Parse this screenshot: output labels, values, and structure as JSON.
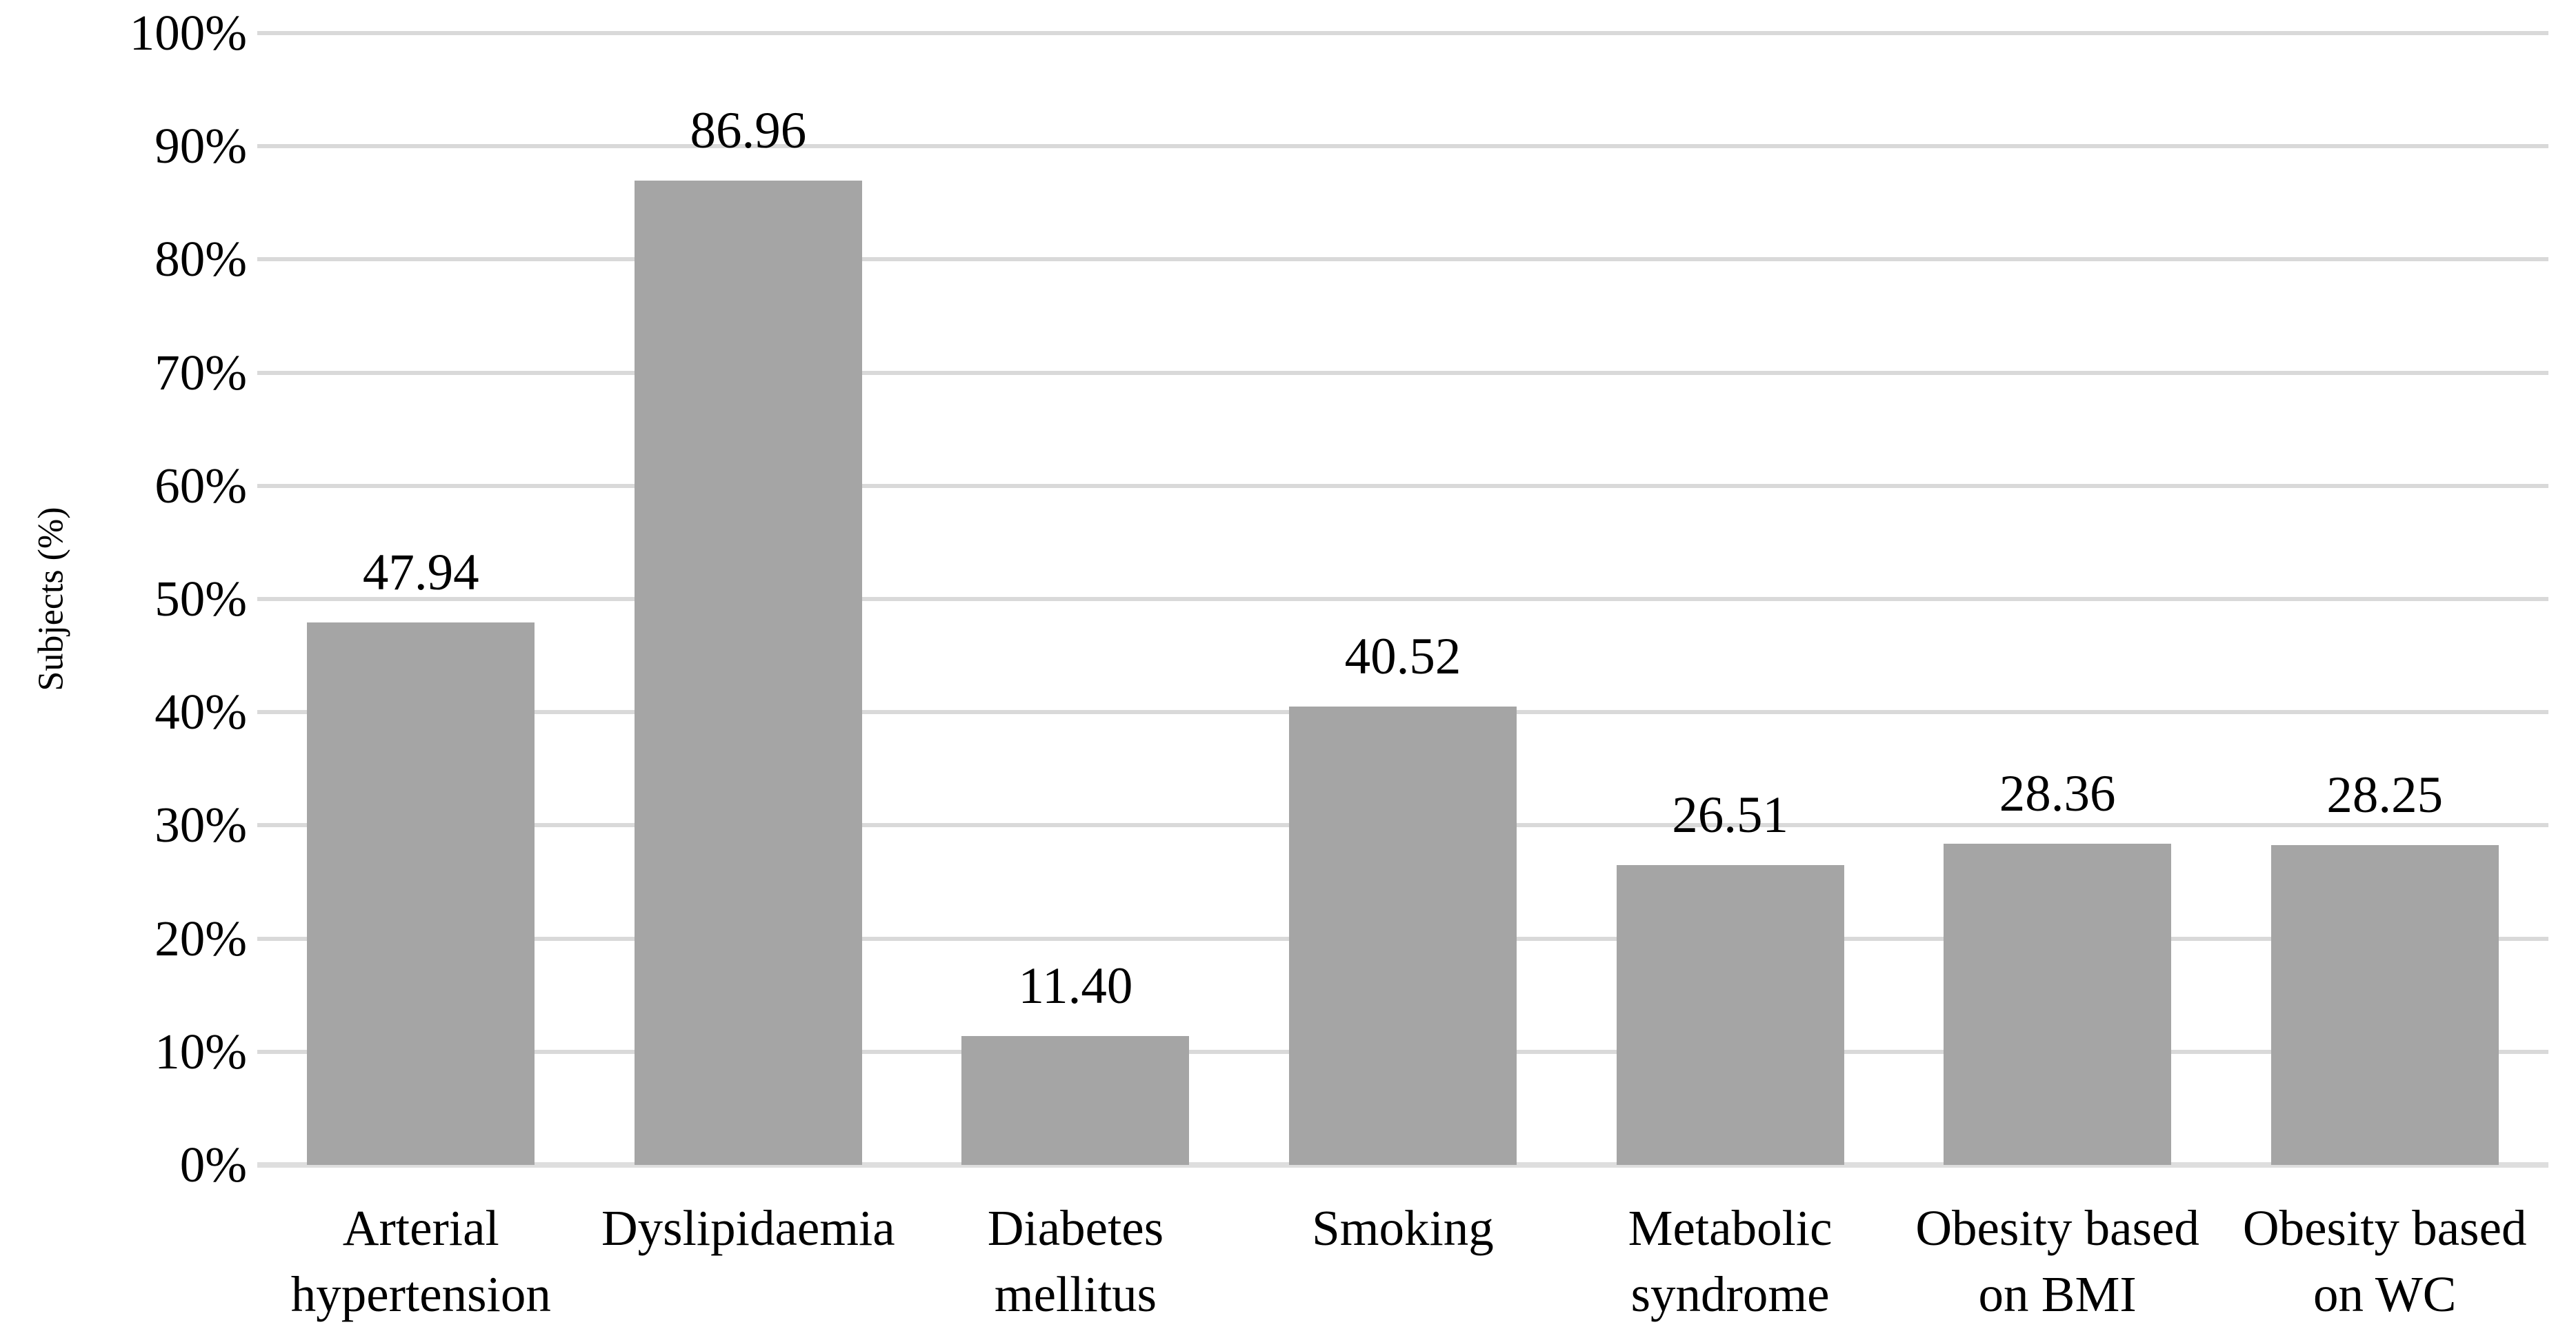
{
  "chart_data": {
    "type": "bar",
    "title": "",
    "xlabel": "",
    "ylabel": "Subjects (%)",
    "categories": [
      "Arterial\nhypertension",
      "Dyslipidaemia",
      "Diabetes\nmellitus",
      "Smoking",
      "Metabolic\nsyndrome",
      "Obesity based\non BMI",
      "Obesity based\non WC"
    ],
    "values": [
      47.94,
      86.96,
      11.4,
      40.52,
      26.51,
      28.36,
      28.25
    ],
    "value_labels": [
      "47.94",
      "86.96",
      "11.40",
      "40.52",
      "26.51",
      "28.36",
      "28.25"
    ],
    "ylim": [
      0,
      100
    ],
    "ytick_step": 10,
    "yticks": [
      "0%",
      "10%",
      "20%",
      "30%",
      "40%",
      "50%",
      "60%",
      "70%",
      "80%",
      "90%",
      "100%"
    ],
    "grid": "horizontal",
    "legend": "none",
    "colors": {
      "bar": "#a5a5a5",
      "gridline": "#d9d9d9",
      "axis_line": "#dedede",
      "text": "#000000",
      "background": "#ffffff"
    }
  }
}
